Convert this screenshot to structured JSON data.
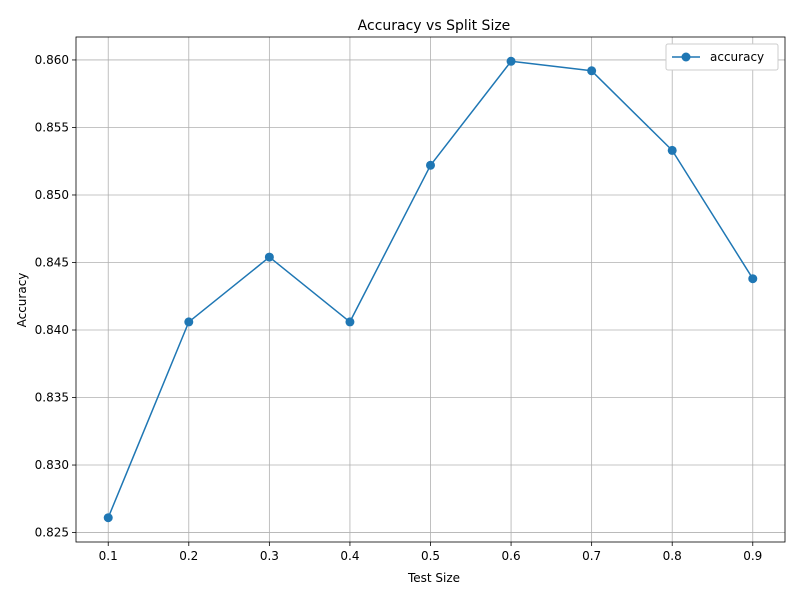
{
  "chart_data": {
    "type": "line",
    "title": "Accuracy vs Split Size",
    "xlabel": "Test Size",
    "ylabel": "Accuracy",
    "x": [
      0.1,
      0.2,
      0.3,
      0.4,
      0.5,
      0.6,
      0.7,
      0.8,
      0.9
    ],
    "x_ticks": [
      "0.1",
      "0.2",
      "0.3",
      "0.4",
      "0.5",
      "0.6",
      "0.7",
      "0.8",
      "0.9"
    ],
    "y_ticks": [
      "0.825",
      "0.830",
      "0.835",
      "0.840",
      "0.845",
      "0.850",
      "0.855",
      "0.860"
    ],
    "y_tick_values": [
      0.825,
      0.83,
      0.835,
      0.84,
      0.845,
      0.85,
      0.855,
      0.86
    ],
    "xlim": [
      0.06,
      0.94
    ],
    "ylim": [
      0.8243,
      0.8617
    ],
    "grid": true,
    "legend": "top-right",
    "series": [
      {
        "name": "accuracy",
        "color": "#1f77b4",
        "marker": "circle",
        "values": [
          0.8261,
          0.8406,
          0.8454,
          0.8406,
          0.8522,
          0.8599,
          0.8592,
          0.8533,
          0.8438
        ]
      }
    ]
  }
}
